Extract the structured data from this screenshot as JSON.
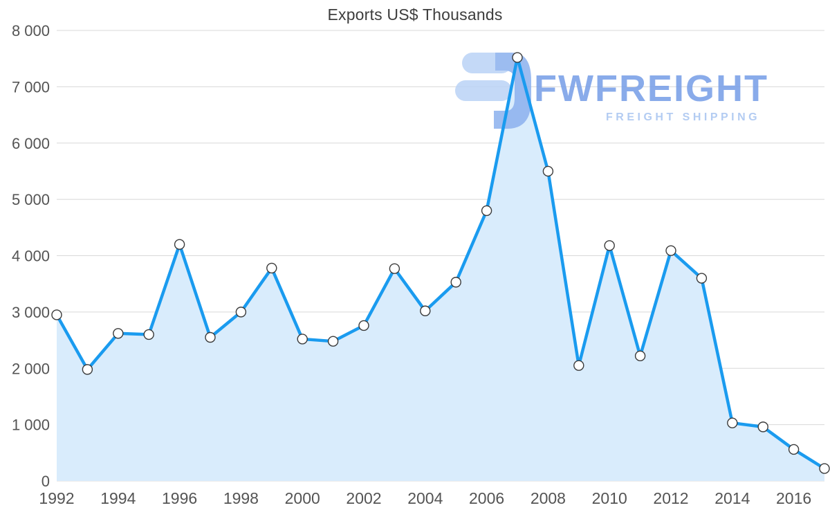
{
  "title": "Exports US$ Thousands",
  "watermark": {
    "brand": "FWFREIGHT",
    "tagline": "FREIGHT SHIPPING"
  },
  "chart_data": {
    "type": "area",
    "title": "Exports US$ Thousands",
    "xlabel": "",
    "ylabel": "",
    "x": [
      1992,
      1993,
      1994,
      1995,
      1996,
      1997,
      1998,
      1999,
      2000,
      2001,
      2002,
      2003,
      2004,
      2005,
      2006,
      2007,
      2008,
      2009,
      2010,
      2011,
      2012,
      2013,
      2014,
      2015,
      2016,
      2017
    ],
    "values": [
      2950,
      1980,
      2620,
      2600,
      4200,
      2550,
      3000,
      3780,
      2520,
      2480,
      2760,
      3770,
      3020,
      3530,
      4800,
      7520,
      5500,
      2050,
      4180,
      2220,
      4090,
      3600,
      1030,
      960,
      560,
      220
    ],
    "xlim": [
      1992,
      2017
    ],
    "ylim": [
      0,
      8000
    ],
    "y_tick_step": 1000,
    "y_tick_labels": [
      "0",
      "1 000",
      "2 000",
      "3 000",
      "4 000",
      "5 000",
      "6 000",
      "7 000",
      "8 000"
    ],
    "x_ticks": [
      1992,
      1994,
      1996,
      1998,
      2000,
      2002,
      2004,
      2006,
      2008,
      2010,
      2012,
      2014,
      2016
    ],
    "x_tick_labels": [
      "1992",
      "1994",
      "1996",
      "1998",
      "2000",
      "2002",
      "2004",
      "2006",
      "2008",
      "2010",
      "2012",
      "2014",
      "2016"
    ],
    "grid": true,
    "legend": "none",
    "colors": {
      "line": "#1a9bef",
      "fill": "#d9ecfc",
      "marker_fill": "#ffffff",
      "marker_stroke": "#3a3a3a",
      "grid": "#d8d8d8",
      "title": "#3d3d3d",
      "tick": "#545454",
      "watermark_brand": "#79a0e8",
      "watermark_tagline": "#a9c5f1",
      "watermark_glyph_light": "#bcd4f6",
      "watermark_glyph_dark": "#8fb3ef"
    }
  }
}
